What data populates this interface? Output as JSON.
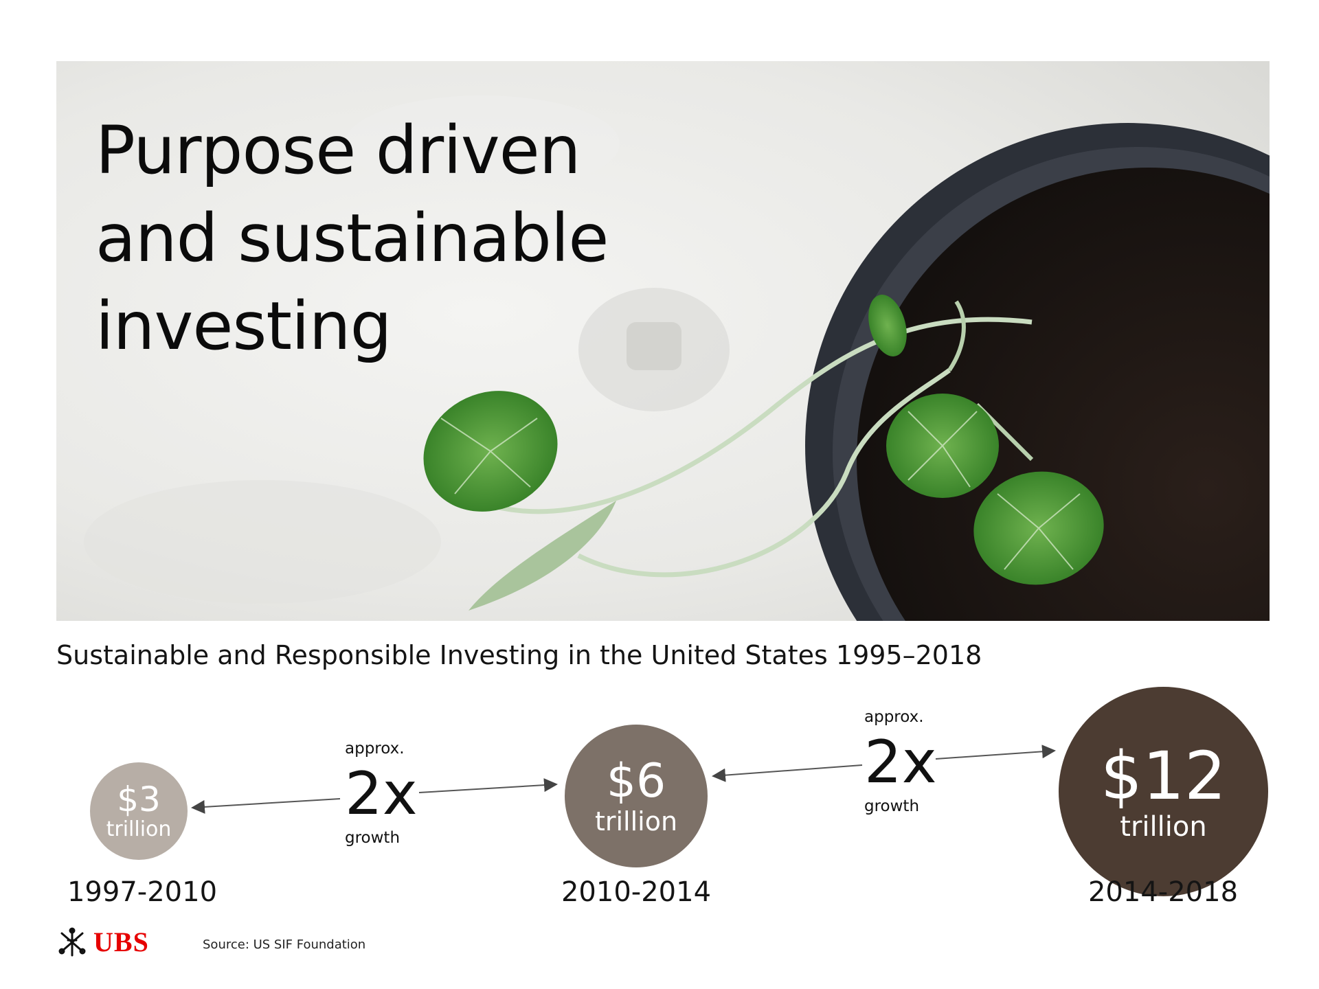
{
  "hero": {
    "title": "Purpose driven\nand sustainable\ninvesting"
  },
  "subtitle": "Sustainable and Responsible Investing in the United States 1995–2018",
  "stages": [
    {
      "amount": "$3",
      "unit": "trillion",
      "period": "1997-2010"
    },
    {
      "amount": "$6",
      "unit": "trillion",
      "period": "2010-2014"
    },
    {
      "amount": "$12",
      "unit": "trillion",
      "period": "2014-2018"
    }
  ],
  "growth": [
    {
      "prefix": "approx.",
      "multiplier": "2x",
      "suffix": "growth"
    },
    {
      "prefix": "approx.",
      "multiplier": "2x",
      "suffix": "growth"
    }
  ],
  "footer": {
    "logo_text": "UBS",
    "source": "Source: US SIF Foundation"
  },
  "colors": {
    "circle_small": "#b7aea6",
    "circle_medium": "#7d7168",
    "circle_large": "#4c3c32",
    "brand_red": "#e60000",
    "leaf_green": "#3f8a2e"
  }
}
